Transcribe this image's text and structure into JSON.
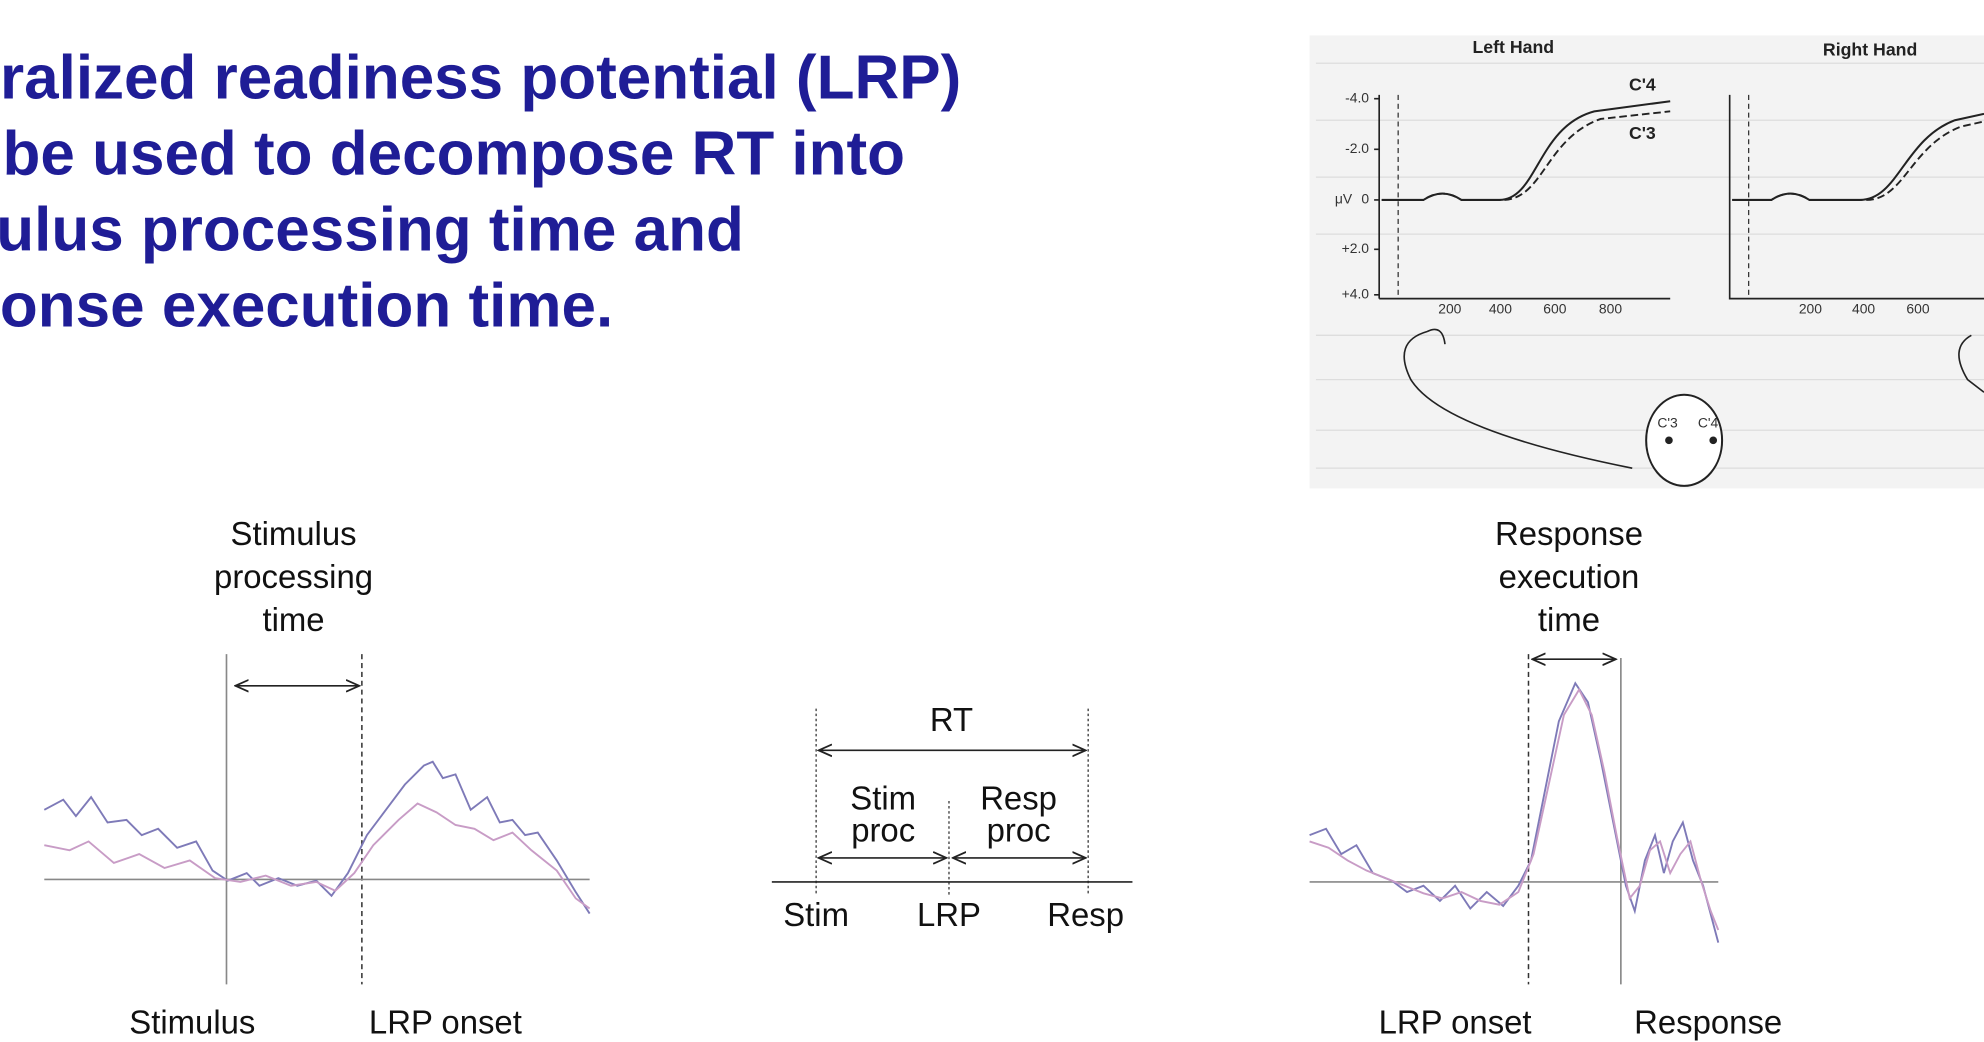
{
  "title": {
    "lines": [
      "ralized readiness potential (LRP)",
      "be used to decompose RT into",
      "ulus processing time and",
      "ponse execution time."
    ]
  },
  "inset": {
    "left_title": "Left Hand",
    "right_title": "Right Hand",
    "y_unit": "μV",
    "y_labels": [
      "-4.0",
      "-2.0",
      "0",
      "+2.0",
      "+4.0"
    ],
    "left_x_labels": [
      "200",
      "400",
      "600",
      "800"
    ],
    "right_x_labels": [
      "200",
      "400",
      "600"
    ],
    "curve_labels": [
      "C'4",
      "C'3"
    ],
    "electrode_labels": [
      "C'3",
      "C'4"
    ]
  },
  "stimulus_panel": {
    "heading_lines": [
      "Stimulus",
      "processing",
      "time"
    ],
    "bottom_labels": [
      "Stimulus",
      "LRP onset"
    ]
  },
  "rt_diagram": {
    "rt": "RT",
    "stim_proc": [
      "Stim",
      "proc"
    ],
    "resp_proc": [
      "Resp",
      "proc"
    ],
    "points": [
      "Stim",
      "LRP",
      "Resp"
    ]
  },
  "response_panel": {
    "heading_lines": [
      "Response",
      "execution",
      "time"
    ],
    "bottom_labels": [
      "LRP onset",
      "Response"
    ]
  }
}
